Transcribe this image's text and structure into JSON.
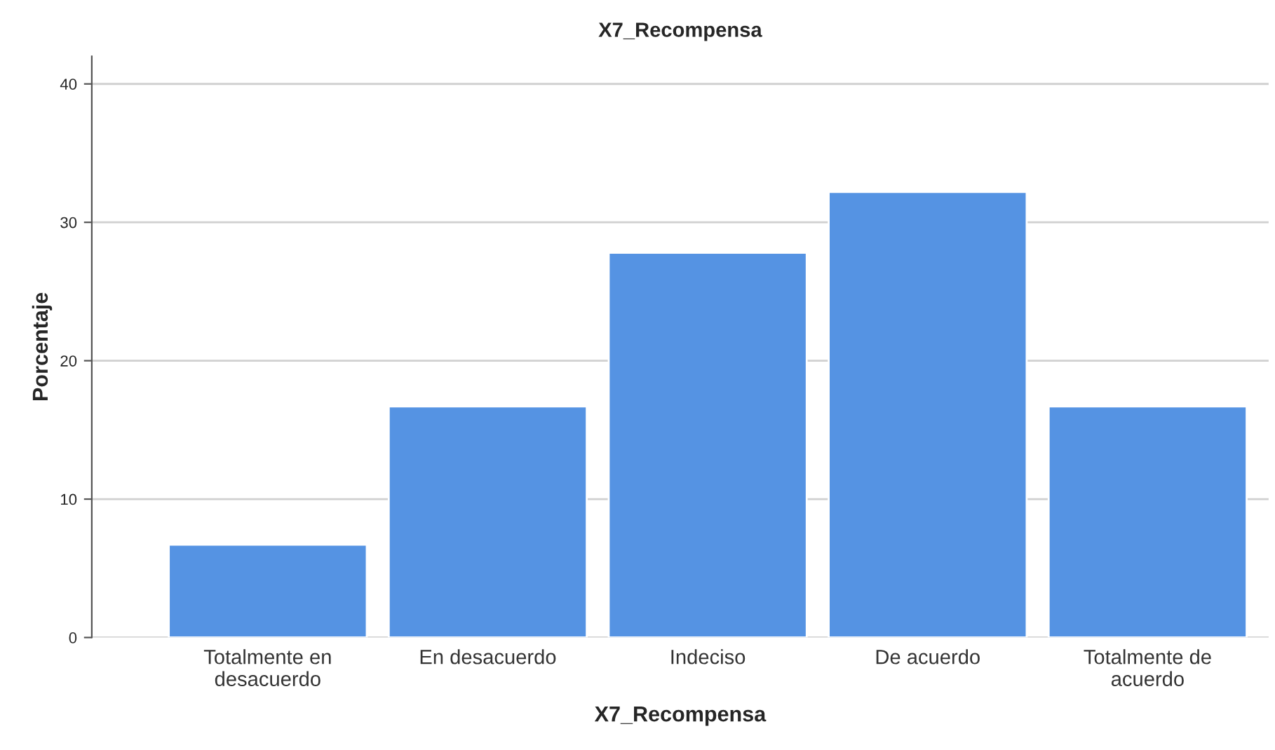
{
  "chart_data": {
    "type": "bar",
    "title": "X7_Recompensa",
    "xlabel": "X7_Recompensa",
    "ylabel": "Porcentaje",
    "categories": [
      "Totalmente en\ndesacuerdo",
      "En desacuerdo",
      "Indeciso",
      "De acuerdo",
      "Totalmente de\nacuerdo"
    ],
    "values": [
      6.7,
      16.7,
      27.8,
      32.2,
      16.7
    ],
    "color": "#5593e3",
    "ylim": [
      0,
      42
    ],
    "yticks": [
      0,
      10,
      20,
      30,
      40
    ],
    "grid": "y"
  }
}
